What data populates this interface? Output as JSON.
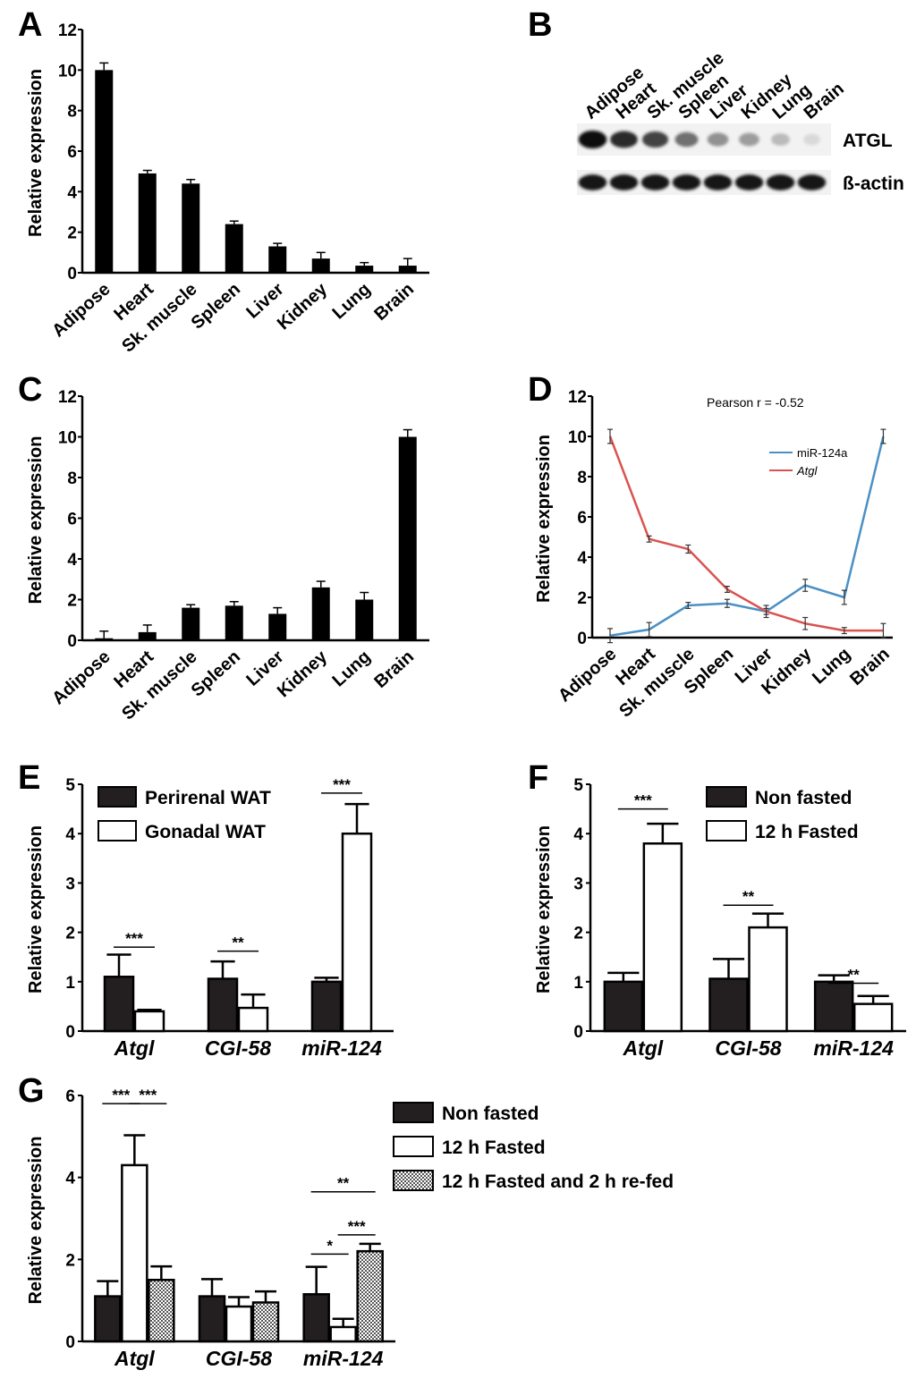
{
  "panel_labels": [
    "A",
    "B",
    "C",
    "D",
    "E",
    "F",
    "G"
  ],
  "chart_data": [
    {
      "id": "A",
      "type": "bar",
      "ylabel": "Relative expression",
      "ylim": [
        0,
        12
      ],
      "yticks": [
        0,
        2,
        4,
        6,
        8,
        10,
        12
      ],
      "categories": [
        "Adipose",
        "Heart",
        "Sk. muscle",
        "Spleen",
        "Liver",
        "Kidney",
        "Lung",
        "Brain"
      ],
      "series": [
        {
          "name": "Atgl",
          "color": "#000000",
          "values": [
            10.0,
            4.9,
            4.4,
            2.4,
            1.3,
            0.7,
            0.35,
            0.35
          ],
          "errors": [
            0.35,
            0.15,
            0.2,
            0.15,
            0.15,
            0.3,
            0.15,
            0.35
          ]
        }
      ]
    },
    {
      "id": "C",
      "type": "bar",
      "ylabel": "Relative expression",
      "ylim": [
        0,
        12
      ],
      "yticks": [
        0,
        2,
        4,
        6,
        8,
        10,
        12
      ],
      "categories": [
        "Adipose",
        "Heart",
        "Sk. muscle",
        "Spleen",
        "Liver",
        "Kidney",
        "Lung",
        "Brain"
      ],
      "series": [
        {
          "name": "miR-124a",
          "color": "#000000",
          "values": [
            0.1,
            0.4,
            1.6,
            1.7,
            1.3,
            2.6,
            2.0,
            10.0
          ],
          "errors": [
            0.35,
            0.35,
            0.15,
            0.2,
            0.3,
            0.3,
            0.35,
            0.35
          ]
        }
      ]
    },
    {
      "id": "D",
      "type": "line",
      "ylabel": "Relative expression",
      "ylim": [
        0,
        12
      ],
      "yticks": [
        0,
        2,
        4,
        6,
        8,
        10,
        12
      ],
      "annotation": "Pearson r = -0.52",
      "categories": [
        "Adipose",
        "Heart",
        "Sk. muscle",
        "Spleen",
        "Liver",
        "Kidney",
        "Lung",
        "Brain"
      ],
      "series": [
        {
          "name": "miR-124a",
          "color": "#4a90c4",
          "values": [
            0.1,
            0.4,
            1.6,
            1.7,
            1.3,
            2.6,
            2.0,
            10.0
          ],
          "errors": [
            0.35,
            0.35,
            0.15,
            0.2,
            0.3,
            0.3,
            0.35,
            0.35
          ]
        },
        {
          "name": "Atgl",
          "color": "#d9534f",
          "values": [
            10.0,
            4.9,
            4.4,
            2.4,
            1.3,
            0.7,
            0.35,
            0.35
          ],
          "errors": [
            0.35,
            0.15,
            0.2,
            0.15,
            0.15,
            0.3,
            0.15,
            0.35
          ]
        }
      ]
    },
    {
      "id": "E",
      "type": "bar",
      "ylabel": "Relative expression",
      "ylim": [
        0,
        5
      ],
      "yticks": [
        0,
        1,
        2,
        3,
        4,
        5
      ],
      "categories": [
        "Atgl",
        "CGI-58",
        "miR-124"
      ],
      "series": [
        {
          "name": "Perirenal WAT",
          "fill": "#231f20",
          "values": [
            1.1,
            1.06,
            1.0
          ],
          "errors": [
            0.45,
            0.35,
            0.08
          ]
        },
        {
          "name": "Gonadal WAT",
          "fill": "#ffffff",
          "values": [
            0.4,
            0.47,
            4.0
          ],
          "errors": [
            0.03,
            0.27,
            0.6
          ]
        }
      ],
      "significance": [
        {
          "label": "***",
          "from": [
            0,
            0
          ],
          "to": [
            0,
            1
          ],
          "y": 1.7
        },
        {
          "label": "**",
          "from": [
            1,
            0
          ],
          "to": [
            1,
            1
          ],
          "y": 1.62
        },
        {
          "label": "***",
          "from": [
            2,
            0
          ],
          "to": [
            2,
            1
          ],
          "y": 4.82
        }
      ]
    },
    {
      "id": "F",
      "type": "bar",
      "ylabel": "Relative expression",
      "ylim": [
        0,
        5
      ],
      "yticks": [
        0,
        1,
        2,
        3,
        4,
        5
      ],
      "categories": [
        "Atgl",
        "CGI-58",
        "miR-124"
      ],
      "series": [
        {
          "name": "Non fasted",
          "fill": "#231f20",
          "values": [
            1.0,
            1.06,
            1.0
          ],
          "errors": [
            0.18,
            0.4,
            0.13
          ]
        },
        {
          "name": "12 h Fasted",
          "fill": "#ffffff",
          "values": [
            3.8,
            2.1,
            0.55
          ],
          "errors": [
            0.4,
            0.28,
            0.16
          ]
        }
      ],
      "significance": [
        {
          "label": "***",
          "from": [
            0,
            0
          ],
          "to": [
            0,
            1
          ],
          "y": 4.5
        },
        {
          "label": "**",
          "from": [
            1,
            0
          ],
          "to": [
            1,
            1
          ],
          "y": 2.55
        },
        {
          "label": "**",
          "from": [
            2,
            0
          ],
          "to": [
            2,
            1
          ],
          "y": 0.97
        }
      ]
    },
    {
      "id": "G",
      "type": "bar",
      "ylabel": "Relative expression",
      "ylim": [
        0,
        6
      ],
      "yticks": [
        0,
        2,
        4,
        6
      ],
      "categories": [
        "Atgl",
        "CGI-58",
        "miR-124"
      ],
      "series": [
        {
          "name": "Non fasted",
          "fill": "#231f20",
          "values": [
            1.1,
            1.1,
            1.15
          ],
          "errors": [
            0.37,
            0.42,
            0.67
          ]
        },
        {
          "name": "12 h Fasted",
          "fill": "#ffffff",
          "values": [
            4.3,
            0.85,
            0.35
          ],
          "errors": [
            0.73,
            0.23,
            0.2
          ]
        },
        {
          "name": "12 h Fasted and 2 h re-fed",
          "fill": "pattern",
          "values": [
            1.5,
            0.95,
            2.2
          ],
          "errors": [
            0.33,
            0.27,
            0.18
          ]
        }
      ],
      "significance": [
        {
          "label": "***",
          "from": [
            0,
            0
          ],
          "to": [
            0,
            1
          ],
          "y": 5.8
        },
        {
          "label": "***",
          "from": [
            0,
            1
          ],
          "to": [
            0,
            2
          ],
          "y": 5.8
        },
        {
          "label": "*",
          "from": [
            2,
            0
          ],
          "to": [
            2,
            1
          ],
          "y": 2.13
        },
        {
          "label": "***",
          "from": [
            2,
            1
          ],
          "to": [
            2,
            2
          ],
          "y": 2.6
        },
        {
          "label": "**",
          "from": [
            2,
            0
          ],
          "to": [
            2,
            2
          ],
          "y": 3.65
        }
      ]
    }
  ],
  "blot": {
    "lanes": [
      "Adipose",
      "Heart",
      "Sk. muscle",
      "Spleen",
      "Liver",
      "Kidney",
      "Lung",
      "Brain"
    ],
    "rows": [
      {
        "label": "ATGL",
        "intensities": [
          1.0,
          0.85,
          0.75,
          0.55,
          0.4,
          0.35,
          0.22,
          0.08
        ]
      },
      {
        "label": "ß-actin",
        "intensities": [
          0.95,
          0.95,
          0.95,
          0.95,
          0.95,
          0.95,
          0.95,
          0.95
        ]
      }
    ]
  }
}
